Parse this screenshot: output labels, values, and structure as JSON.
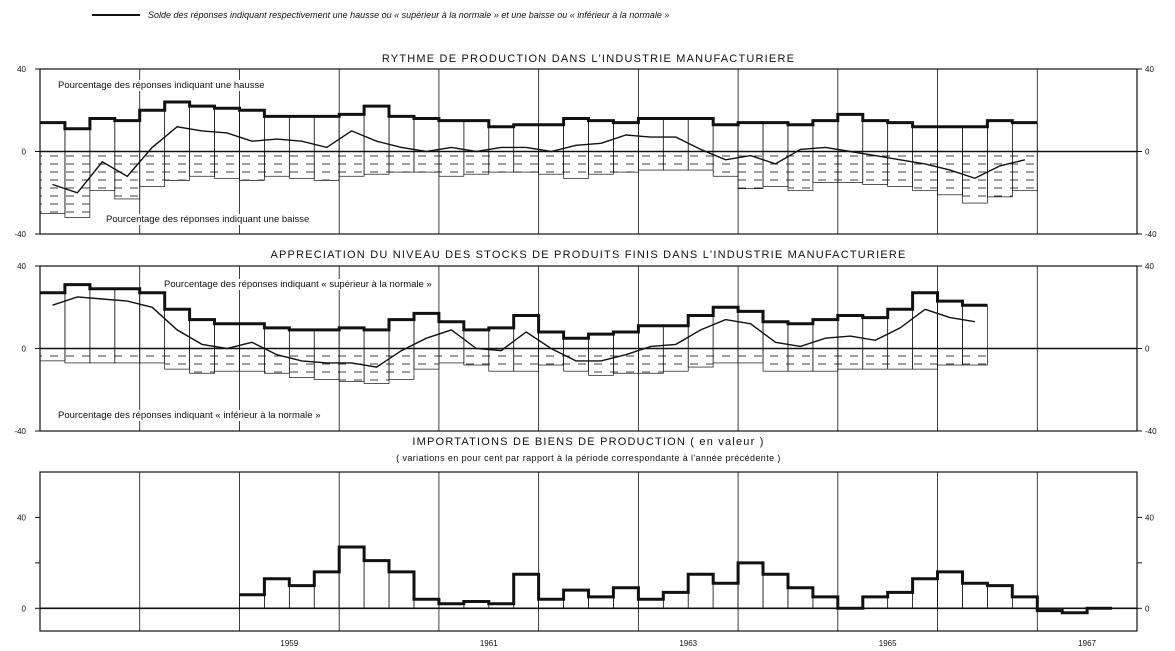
{
  "legend": {
    "line_label": "Solde des réponses indiquant respectivement une hausse ou « supérieur à la normale » et une baisse ou « inférieur à la normale »"
  },
  "panels": {
    "p1": {
      "title": "RYTHME DE PRODUCTION DANS L'INDUSTRIE MANUFACTURIERE",
      "upper_label": "Pourcentage des réponses indiquant une hausse",
      "lower_label": "Pourcentage des réponses indiquant une baisse"
    },
    "p2": {
      "title": "APPRECIATION DU NIVEAU DES STOCKS DE PRODUITS FINIS DANS L'INDUSTRIE MANUFACTURIERE",
      "upper_label": "Pourcentage des réponses indiquant « supérieur à la normale »",
      "lower_label": "Pourcentage des réponses indiquant « inférieur à la normale »"
    },
    "p3": {
      "title": "IMPORTATIONS DE BIENS DE PRODUCTION ( en valeur )",
      "subtitle": "( variations en pour cent par rapport à la période correspondante à l'année précédente )"
    }
  },
  "colors": {
    "ink": "#111111",
    "paper": "#ffffff"
  },
  "chart_data": [
    {
      "type": "bar",
      "ylim": [
        -40,
        40
      ],
      "yticks": [
        40,
        0,
        -40
      ],
      "x_start": 1957.0,
      "x_step": 0.25,
      "series": [
        {
          "name": "Pourcentage des réponses indiquant une hausse",
          "values": [
            14,
            11,
            16,
            15,
            20,
            24,
            22,
            21,
            20,
            17,
            17,
            17,
            18,
            22,
            17,
            16,
            15,
            15,
            12,
            13,
            13,
            16,
            15,
            14,
            16,
            16,
            16,
            13,
            14,
            14,
            13,
            15,
            18,
            15,
            14,
            12,
            12,
            12,
            15,
            14
          ]
        },
        {
          "name": "Pourcentage des réponses indiquant une baisse",
          "values": [
            -30,
            -32,
            -19,
            -23,
            -17,
            -14,
            -12,
            -13,
            -14,
            -12,
            -13,
            -14,
            -12,
            -11,
            -10,
            -10,
            -12,
            -11,
            -10,
            -10,
            -11,
            -13,
            -11,
            -10,
            -9,
            -9,
            -9,
            -12,
            -18,
            -17,
            -19,
            -15,
            -15,
            -16,
            -17,
            -19,
            -21,
            -25,
            -22,
            -19
          ]
        },
        {
          "name": "Solde des réponses indiquant respectivement une hausse ou « supérieur à la normale » et une baisse ou « inférieur à la normale »",
          "values": [
            -16,
            -20,
            -5,
            -12,
            2,
            12,
            10,
            9,
            5,
            6,
            5,
            2,
            10,
            5,
            2,
            0,
            2,
            0,
            2,
            2,
            0,
            3,
            4,
            8,
            7,
            7,
            1,
            -4,
            -2,
            -6,
            1,
            2,
            0,
            -2,
            -4,
            -6,
            -9,
            -13,
            -7,
            -4
          ]
        }
      ]
    },
    {
      "type": "bar",
      "ylim": [
        -40,
        40
      ],
      "yticks": [
        40,
        0,
        -40
      ],
      "x_start": 1957.0,
      "x_step": 0.25,
      "series": [
        {
          "name": "Pourcentage des réponses indiquant « supérieur à la normale »",
          "values": [
            27,
            31,
            29,
            29,
            27,
            19,
            14,
            12,
            12,
            10,
            9,
            9,
            10,
            9,
            14,
            17,
            13,
            9,
            10,
            16,
            8,
            5,
            7,
            8,
            11,
            11,
            16,
            20,
            18,
            13,
            12,
            14,
            16,
            15,
            19,
            27,
            23,
            21
          ]
        },
        {
          "name": "Pourcentage des réponses indiquant « inférieur à la normale »",
          "values": [
            -6,
            -7,
            -7,
            -7,
            -7,
            -10,
            -12,
            -11,
            -11,
            -12,
            -14,
            -15,
            -16,
            -17,
            -15,
            -10,
            -7,
            -8,
            -11,
            -11,
            -8,
            -11,
            -13,
            -12,
            -12,
            -11,
            -9,
            -7,
            -7,
            -11,
            -11,
            -11,
            -10,
            -10,
            -10,
            -10,
            -8,
            -8
          ]
        },
        {
          "name": "Solde des réponses indiquant respectivement une hausse ou « supérieur à la normale » et une baisse ou « inférieur à la normale »",
          "values": [
            21,
            25,
            24,
            23,
            20,
            9,
            2,
            0,
            3,
            -3,
            -6,
            -7,
            -7,
            -9,
            -1,
            5,
            9,
            0,
            -1,
            8,
            0,
            -6,
            -6,
            -3,
            1,
            2,
            9,
            14,
            12,
            3,
            1,
            5,
            6,
            4,
            10,
            19,
            15,
            13
          ]
        }
      ]
    },
    {
      "type": "bar",
      "ylim": [
        -10,
        60
      ],
      "yticks": [
        40,
        20,
        0
      ],
      "ytick_labels": [
        "40",
        "",
        "0"
      ],
      "x_start": 1957.0,
      "x_step": 0.25,
      "xticks": [
        1959,
        1961,
        1963,
        1965,
        1967
      ],
      "series": [
        {
          "name": "IMPORTATIONS DE BIENS DE PRODUCTION ( en valeur )",
          "start_index": 8,
          "values": [
            6,
            13,
            10,
            16,
            27,
            21,
            16,
            4,
            2,
            3,
            2,
            15,
            4,
            8,
            5,
            9,
            4,
            7,
            15,
            11,
            20,
            15,
            9,
            5,
            0,
            5,
            7,
            13,
            16,
            11,
            10,
            5,
            -1,
            -2,
            0
          ]
        }
      ]
    }
  ]
}
